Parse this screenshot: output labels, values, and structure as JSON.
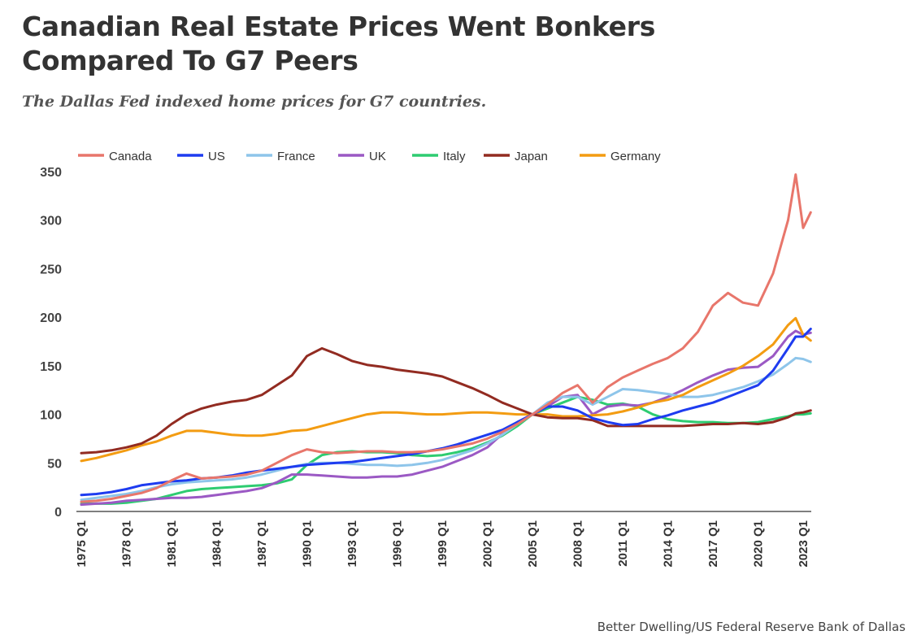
{
  "title_line1": "Canadian Real Estate Prices Went Bonkers",
  "title_line2": "Compared To G7 Peers",
  "subtitle": "The Dallas Fed indexed home prices for G7 countries.",
  "source": "Better Dwelling/US Federal Reserve Bank of Dallas",
  "chart_data": {
    "type": "line",
    "title": "Canadian Real Estate Prices Went Bonkers Compared To G7 Peers",
    "subtitle": "The Dallas Fed indexed home prices for G7 countries.",
    "xlabel": "",
    "ylabel": "",
    "ylim": [
      0,
      350
    ],
    "yticks": [
      0,
      50,
      100,
      150,
      200,
      250,
      300,
      350
    ],
    "xticks": [
      "1975 Q1",
      "1978 Q1",
      "1981 Q1",
      "1984 Q1",
      "1987 Q1",
      "1990 Q1",
      "1993 Q1",
      "1996 Q1",
      "1999 Q1",
      "2002 Q1",
      "2005 Q1",
      "2008 Q1",
      "2011 Q1",
      "2014 Q1",
      "2017 Q1",
      "2020 Q1",
      "2023 Q1"
    ],
    "grid": false,
    "legend": "top",
    "x": [
      1975,
      1976,
      1977,
      1978,
      1979,
      1980,
      1981,
      1982,
      1983,
      1984,
      1985,
      1986,
      1987,
      1988,
      1989,
      1990,
      1991,
      1992,
      1993,
      1994,
      1995,
      1996,
      1997,
      1998,
      1999,
      2000,
      2001,
      2002,
      2003,
      2004,
      2005,
      2006,
      2007,
      2008,
      2009,
      2010,
      2011,
      2012,
      2013,
      2014,
      2015,
      2016,
      2017,
      2018,
      2019,
      2020,
      2021,
      2022,
      2022.5,
      2023,
      2023.5
    ],
    "series": [
      {
        "name": "Canada",
        "color": "#e8766b",
        "values": [
          10,
          11,
          13,
          16,
          19,
          24,
          32,
          39,
          34,
          35,
          36,
          38,
          42,
          50,
          58,
          64,
          61,
          60,
          61,
          62,
          62,
          61,
          61,
          62,
          64,
          67,
          70,
          75,
          82,
          90,
          100,
          110,
          122,
          130,
          112,
          128,
          138,
          145,
          152,
          158,
          168,
          185,
          212,
          225,
          215,
          212,
          245,
          300,
          347,
          292,
          308
        ]
      },
      {
        "name": "US",
        "color": "#1e3cf0",
        "values": [
          17,
          18,
          20,
          23,
          27,
          29,
          31,
          32,
          34,
          35,
          37,
          40,
          42,
          44,
          46,
          48,
          49,
          50,
          51,
          53,
          55,
          57,
          59,
          62,
          65,
          69,
          74,
          79,
          84,
          92,
          100,
          108,
          108,
          104,
          96,
          92,
          89,
          90,
          95,
          99,
          104,
          108,
          112,
          118,
          124,
          130,
          145,
          168,
          180,
          180,
          188
        ]
      },
      {
        "name": "France",
        "color": "#8ec5ea",
        "values": [
          12,
          14,
          16,
          18,
          21,
          25,
          28,
          30,
          31,
          32,
          33,
          35,
          38,
          42,
          46,
          49,
          50,
          50,
          49,
          48,
          48,
          47,
          48,
          50,
          53,
          58,
          63,
          70,
          79,
          90,
          100,
          112,
          118,
          118,
          110,
          118,
          126,
          125,
          123,
          121,
          118,
          118,
          120,
          124,
          128,
          134,
          141,
          152,
          158,
          157,
          154
        ]
      },
      {
        "name": "UK",
        "color": "#9b59c4",
        "values": [
          7,
          8,
          9,
          11,
          12,
          13,
          14,
          14,
          15,
          17,
          19,
          21,
          24,
          30,
          38,
          38,
          37,
          36,
          35,
          35,
          36,
          36,
          38,
          42,
          46,
          52,
          58,
          66,
          80,
          92,
          100,
          108,
          118,
          120,
          100,
          108,
          110,
          109,
          112,
          118,
          125,
          133,
          140,
          146,
          148,
          149,
          160,
          180,
          186,
          182,
          184
        ]
      },
      {
        "name": "Italy",
        "color": "#2ecc71",
        "values": [
          8,
          8,
          8,
          9,
          11,
          13,
          17,
          21,
          23,
          24,
          25,
          26,
          27,
          29,
          33,
          48,
          58,
          61,
          62,
          61,
          61,
          60,
          58,
          57,
          58,
          61,
          65,
          71,
          78,
          88,
          100,
          106,
          112,
          118,
          115,
          110,
          111,
          108,
          100,
          95,
          93,
          92,
          92,
          91,
          91,
          92,
          95,
          98,
          100,
          100,
          101
        ]
      },
      {
        "name": "Japan",
        "color": "#922b21",
        "values": [
          60,
          61,
          63,
          66,
          70,
          78,
          90,
          100,
          106,
          110,
          113,
          115,
          120,
          130,
          140,
          160,
          168,
          162,
          155,
          151,
          149,
          146,
          144,
          142,
          139,
          133,
          127,
          120,
          112,
          106,
          100,
          97,
          96,
          96,
          94,
          88,
          88,
          88,
          88,
          88,
          88,
          89,
          90,
          90,
          91,
          90,
          92,
          97,
          101,
          102,
          104
        ]
      },
      {
        "name": "Germany",
        "color": "#f39c12",
        "values": [
          52,
          55,
          59,
          63,
          68,
          72,
          78,
          83,
          83,
          81,
          79,
          78,
          78,
          80,
          83,
          84,
          88,
          92,
          96,
          100,
          102,
          102,
          101,
          100,
          100,
          101,
          102,
          102,
          101,
          100,
          100,
          100,
          98,
          98,
          99,
          100,
          103,
          107,
          112,
          115,
          120,
          128,
          135,
          142,
          150,
          160,
          172,
          192,
          199,
          182,
          176
        ]
      }
    ]
  }
}
